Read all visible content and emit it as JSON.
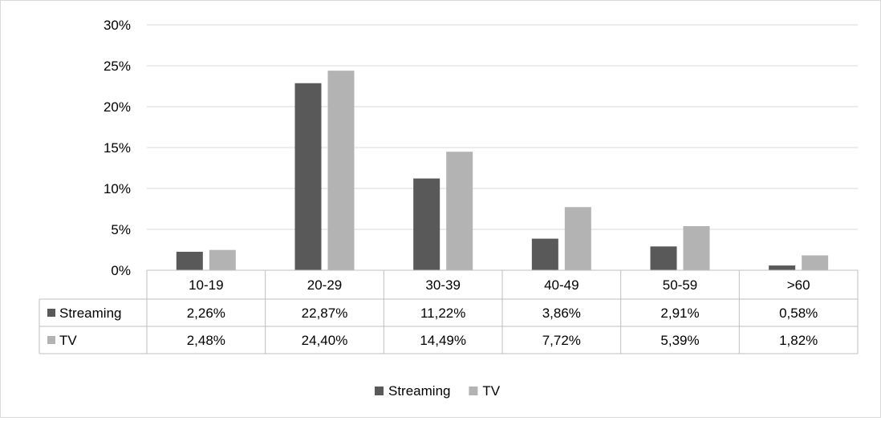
{
  "chart_data": {
    "type": "bar",
    "categories": [
      "10-19",
      "20-29",
      "30-39",
      "40-49",
      "50-59",
      ">60"
    ],
    "series": [
      {
        "name": "Streaming",
        "color": "#595959",
        "values": [
          2.26,
          22.87,
          11.22,
          3.86,
          2.91,
          0.58
        ],
        "labels": [
          "2,26%",
          "22,87%",
          "11,22%",
          "3,86%",
          "2,91%",
          "0,58%"
        ]
      },
      {
        "name": "TV",
        "color": "#b3b3b3",
        "values": [
          2.48,
          24.4,
          14.49,
          7.72,
          5.39,
          1.82
        ],
        "labels": [
          "2,48%",
          "24,40%",
          "14,49%",
          "7,72%",
          "5,39%",
          "1,82%"
        ]
      }
    ],
    "ylim": [
      0,
      30
    ],
    "yticks": [
      0,
      5,
      10,
      15,
      20,
      25,
      30
    ],
    "ytick_labels": [
      "0%",
      "5%",
      "10%",
      "15%",
      "20%",
      "25%",
      "30%"
    ],
    "grid": true,
    "data_table": true,
    "legend_position": "bottom",
    "title": "",
    "xlabel": "",
    "ylabel": ""
  }
}
